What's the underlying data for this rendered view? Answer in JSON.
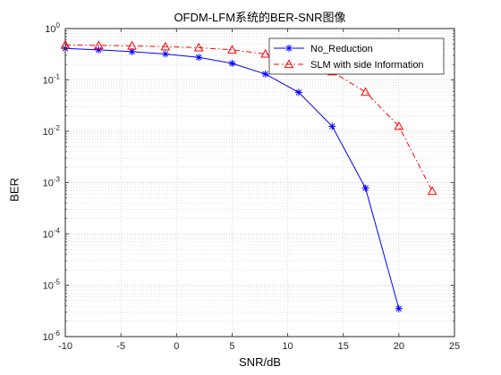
{
  "chart_data": {
    "type": "line",
    "title": "OFDM-LFM系统的BER-SNR图像",
    "xlabel": "SNR/dB",
    "ylabel": "BER",
    "xlim": [
      -10,
      25
    ],
    "ylim": [
      1e-06,
      1
    ],
    "yscale": "log",
    "grid": "major and minor",
    "legend_position": "top-right",
    "x_ticks": [
      "-10",
      "-5",
      "0",
      "5",
      "10",
      "15",
      "20",
      "25"
    ],
    "y_ticks": [
      {
        "base": "10",
        "exp": "0"
      },
      {
        "base": "10",
        "exp": "-1"
      },
      {
        "base": "10",
        "exp": "-2"
      },
      {
        "base": "10",
        "exp": "-3"
      },
      {
        "base": "10",
        "exp": "-4"
      },
      {
        "base": "10",
        "exp": "-5"
      },
      {
        "base": "10",
        "exp": "-6"
      }
    ],
    "series": [
      {
        "name": "No_Reduction",
        "color": "#0000ff",
        "line_style": "solid",
        "marker": "asterisk",
        "x": [
          -10,
          -7,
          -4,
          -1,
          2,
          5,
          8,
          11,
          14,
          17,
          20
        ],
        "y": [
          0.41,
          0.385,
          0.355,
          0.32,
          0.275,
          0.21,
          0.13,
          0.057,
          0.0125,
          0.00078,
          3.5e-06
        ]
      },
      {
        "name": "SLM with side Information",
        "color": "#ff0000",
        "line_style": "dashdot",
        "marker": "triangle",
        "x": [
          -10,
          -7,
          -4,
          -1,
          2,
          5,
          8,
          11,
          14,
          17,
          20,
          23
        ],
        "y": [
          0.48,
          0.47,
          0.46,
          0.445,
          0.425,
          0.385,
          0.32,
          0.23,
          0.145,
          0.058,
          0.0125,
          0.00068
        ]
      }
    ]
  }
}
